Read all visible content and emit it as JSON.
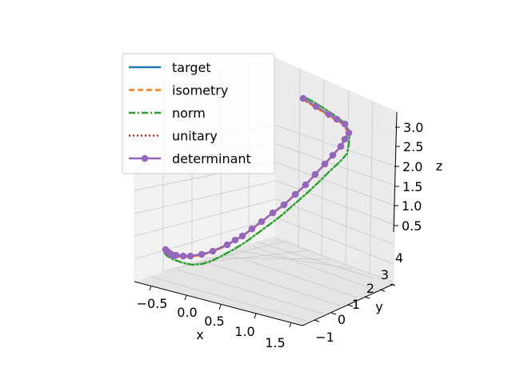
{
  "chart_data": {
    "type": "line3d",
    "title": "",
    "xlabel": "x",
    "ylabel": "y",
    "zlabel": "z",
    "xlim": [
      -0.8,
      1.7
    ],
    "ylim": [
      -1.5,
      4.5
    ],
    "zlim": [
      0.3,
      3.3
    ],
    "x_ticks": [
      "−0.5",
      "0.0",
      "0.5",
      "1.0",
      "1.5"
    ],
    "y_ticks": [
      "−1",
      "0",
      "1",
      "2",
      "3",
      "4"
    ],
    "z_ticks": [
      "0.5",
      "1.0",
      "1.5",
      "2.0",
      "2.5",
      "3.0"
    ],
    "grid": true,
    "legend_position": "upper-left",
    "series": [
      {
        "name": "target",
        "color": "#1f77b4",
        "style": "solid",
        "marker": false,
        "offset": [
          0,
          0
        ]
      },
      {
        "name": "isometry",
        "color": "#ff7f0e",
        "style": "dashed",
        "marker": false,
        "offset": [
          -1,
          1
        ]
      },
      {
        "name": "norm",
        "color": "#2ca02c",
        "style": "dashdot",
        "marker": false,
        "offset": [
          0,
          0
        ]
      },
      {
        "name": "unitary",
        "color": "#d62728",
        "style": "dotted",
        "marker": false,
        "offset": [
          0,
          0
        ]
      },
      {
        "name": "determinant",
        "color": "#9467bd",
        "style": "solid",
        "marker": true,
        "offset": [
          0,
          0
        ]
      }
    ],
    "main_path": [
      [
        379,
        123
      ],
      [
        395,
        133
      ],
      [
        411,
        143
      ],
      [
        421,
        149
      ],
      [
        431,
        155
      ],
      [
        436,
        166
      ],
      [
        431,
        174
      ],
      [
        426,
        183
      ],
      [
        416,
        194
      ],
      [
        406,
        205
      ],
      [
        394,
        218
      ],
      [
        382,
        231
      ],
      [
        369,
        243
      ],
      [
        355,
        256
      ],
      [
        341,
        266
      ],
      [
        327,
        277
      ],
      [
        315,
        286
      ],
      [
        303,
        295
      ],
      [
        294,
        300
      ],
      [
        284,
        306
      ],
      [
        266,
        314
      ],
      [
        252,
        318
      ],
      [
        238,
        320
      ],
      [
        229,
        320
      ],
      [
        220,
        319
      ],
      [
        213,
        317
      ],
      [
        210,
        315
      ],
      [
        207,
        312
      ],
      [
        211,
        316
      ],
      [
        214,
        318
      ],
      [
        217,
        320
      ]
    ],
    "norm_path": [
      [
        384,
        123
      ],
      [
        398,
        131
      ],
      [
        412,
        140
      ],
      [
        422,
        147
      ],
      [
        432,
        155
      ],
      [
        437,
        166
      ],
      [
        436,
        180
      ],
      [
        434,
        192
      ],
      [
        425,
        202
      ],
      [
        412,
        214
      ],
      [
        398,
        228
      ],
      [
        383,
        242
      ],
      [
        367,
        256
      ],
      [
        351,
        270
      ],
      [
        335,
        282
      ],
      [
        320,
        293
      ],
      [
        305,
        304
      ],
      [
        290,
        313
      ],
      [
        277,
        320
      ],
      [
        265,
        326
      ],
      [
        253,
        330
      ],
      [
        240,
        331
      ],
      [
        227,
        328
      ],
      [
        216,
        324
      ],
      [
        209,
        320
      ],
      [
        205,
        316
      ]
    ]
  }
}
